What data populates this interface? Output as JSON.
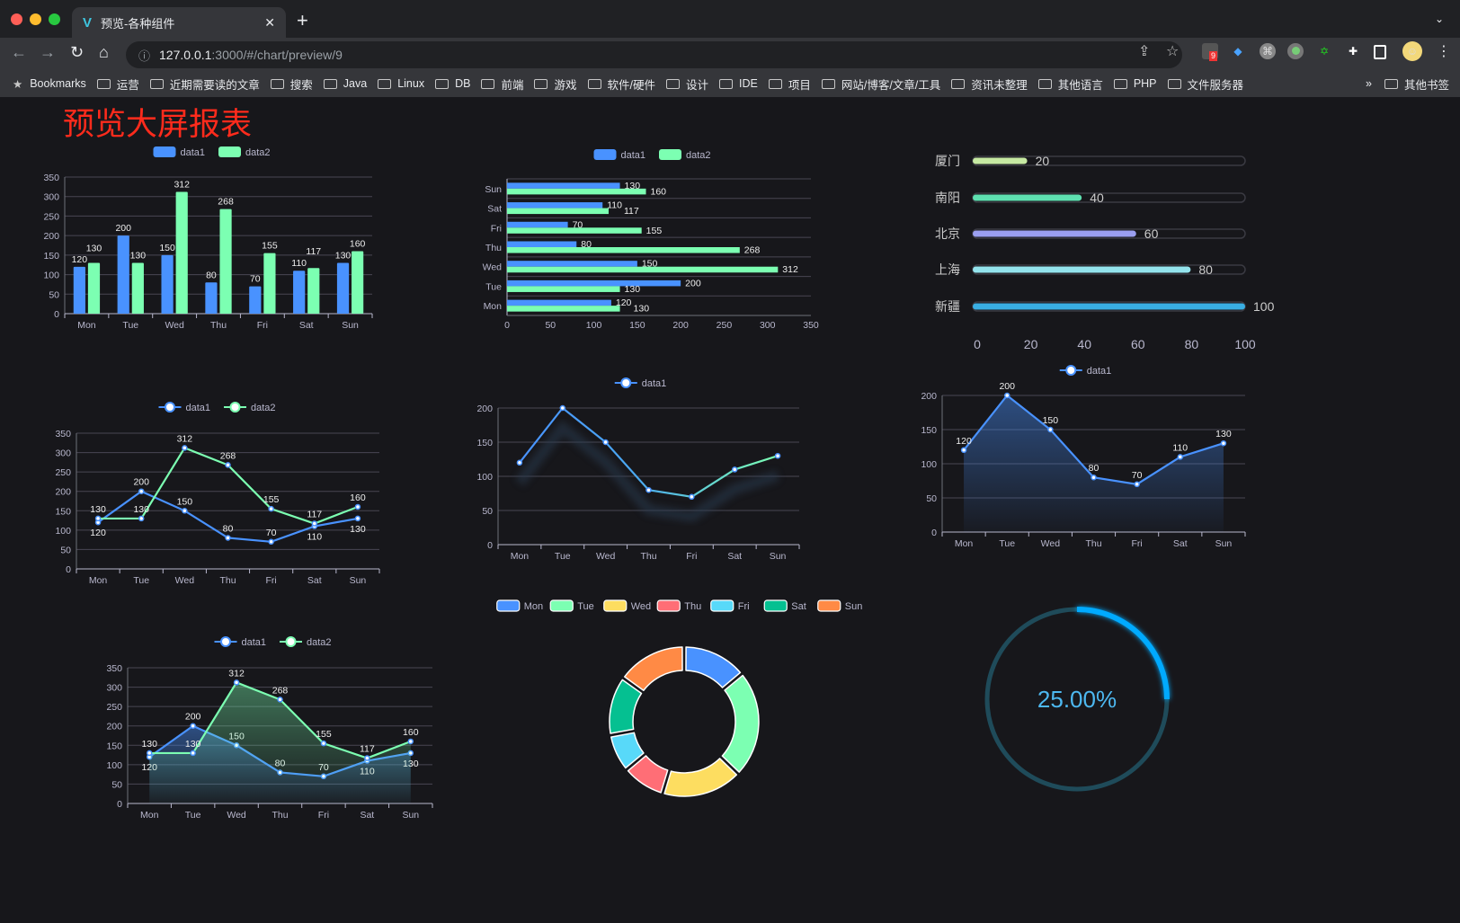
{
  "browser": {
    "tab_title": "预览-各种组件",
    "url_host": "127.0.0.1",
    "url_path": ":3000/#/chart/preview/9",
    "extension_badge": "9",
    "bookmarks": [
      "Bookmarks",
      "运营",
      "近期需要读的文章",
      "搜索",
      "Java",
      "Linux",
      "DB",
      "前端",
      "游戏",
      "软件/硬件",
      "设计",
      "IDE",
      "项目",
      "网站/博客/文章/工具",
      "资讯未整理",
      "其他语言",
      "PHP",
      "文件服务器"
    ],
    "bookmarks_more": "»",
    "other_bookmarks": "其他书签"
  },
  "page": {
    "title": "预览大屏报表",
    "title_color": "#ff2b1c",
    "background": "#17171b"
  },
  "colors": {
    "data1": "#4992ff",
    "data2": "#7cffb2",
    "axis_text": "#b9b8ce",
    "grid": "#484753",
    "gauge": "#00aaff",
    "gauge_track": "#1f4b5a"
  },
  "chart_data": [
    {
      "id": "bar",
      "type": "bar",
      "legend": [
        "data1",
        "data2"
      ],
      "categories": [
        "Mon",
        "Tue",
        "Wed",
        "Thu",
        "Fri",
        "Sat",
        "Sun"
      ],
      "series": [
        {
          "name": "data1",
          "values": [
            120,
            200,
            150,
            80,
            70,
            110,
            130
          ]
        },
        {
          "name": "data2",
          "values": [
            130,
            130,
            312,
            268,
            155,
            117,
            160
          ]
        }
      ],
      "ylim": [
        0,
        350
      ],
      "yticks": [
        0,
        50,
        100,
        150,
        200,
        250,
        300,
        350
      ],
      "grid": true,
      "data_labels": true,
      "legend_position": "top"
    },
    {
      "id": "hbar",
      "type": "bar",
      "orientation": "horizontal",
      "legend": [
        "data1",
        "data2"
      ],
      "categories": [
        "Mon",
        "Tue",
        "Wed",
        "Thu",
        "Fri",
        "Sat",
        "Sun"
      ],
      "series": [
        {
          "name": "data1",
          "values": [
            120,
            200,
            150,
            80,
            70,
            110,
            130
          ]
        },
        {
          "name": "data2",
          "values": [
            130,
            130,
            312,
            268,
            155,
            117,
            160
          ]
        }
      ],
      "xlim": [
        0,
        350
      ],
      "xticks": [
        0,
        50,
        100,
        150,
        200,
        250,
        300,
        350
      ],
      "grid": true,
      "data_labels": true,
      "legend_position": "top"
    },
    {
      "id": "progress",
      "type": "bar",
      "orientation": "horizontal",
      "style": "progress",
      "categories": [
        "厦门",
        "南阳",
        "北京",
        "上海",
        "新疆"
      ],
      "values": [
        20,
        40,
        60,
        80,
        100
      ],
      "colors": [
        "#c6e9a2",
        "#5ee0b0",
        "#9a9ef0",
        "#93e3ec",
        "#39aee3"
      ],
      "xlim": [
        0,
        100
      ],
      "xticks": [
        0,
        20,
        40,
        60,
        80,
        100
      ]
    },
    {
      "id": "line2",
      "type": "line",
      "legend": [
        "data1",
        "data2"
      ],
      "categories": [
        "Mon",
        "Tue",
        "Wed",
        "Thu",
        "Fri",
        "Sat",
        "Sun"
      ],
      "series": [
        {
          "name": "data1",
          "values": [
            120,
            200,
            150,
            80,
            70,
            110,
            130
          ]
        },
        {
          "name": "data2",
          "values": [
            130,
            130,
            312,
            268,
            155,
            117,
            160
          ]
        }
      ],
      "ylim": [
        0,
        350
      ],
      "yticks": [
        0,
        50,
        100,
        150,
        200,
        250,
        300,
        350
      ],
      "grid": true,
      "data_labels": true,
      "legend_position": "top"
    },
    {
      "id": "line1",
      "type": "line",
      "legend": [
        "data1"
      ],
      "categories": [
        "Mon",
        "Tue",
        "Wed",
        "Thu",
        "Fri",
        "Sat",
        "Sun"
      ],
      "series": [
        {
          "name": "data1",
          "values": [
            120,
            200,
            150,
            80,
            70,
            110,
            130
          ]
        }
      ],
      "gradient": [
        "#4992ff",
        "#7cffb2"
      ],
      "shadow": true,
      "ylim": [
        0,
        200
      ],
      "yticks": [
        0,
        50,
        100,
        150,
        200
      ],
      "grid": true,
      "data_labels": false,
      "legend_position": "top"
    },
    {
      "id": "area1",
      "type": "area",
      "legend": [
        "data1"
      ],
      "categories": [
        "Mon",
        "Tue",
        "Wed",
        "Thu",
        "Fri",
        "Sat",
        "Sun"
      ],
      "series": [
        {
          "name": "data1",
          "values": [
            120,
            200,
            150,
            80,
            70,
            110,
            130
          ]
        }
      ],
      "ylim": [
        0,
        200
      ],
      "yticks": [
        0,
        50,
        100,
        150,
        200
      ],
      "grid": true,
      "data_labels": true,
      "legend_position": "top"
    },
    {
      "id": "area2",
      "type": "area",
      "legend": [
        "data1",
        "data2"
      ],
      "categories": [
        "Mon",
        "Tue",
        "Wed",
        "Thu",
        "Fri",
        "Sat",
        "Sun"
      ],
      "series": [
        {
          "name": "data1",
          "values": [
            120,
            200,
            150,
            80,
            70,
            110,
            130
          ]
        },
        {
          "name": "data2",
          "values": [
            130,
            130,
            312,
            268,
            155,
            117,
            160
          ]
        }
      ],
      "ylim": [
        0,
        350
      ],
      "yticks": [
        0,
        50,
        100,
        150,
        200,
        250,
        300,
        350
      ],
      "grid": true,
      "data_labels": true,
      "legend_position": "top"
    },
    {
      "id": "donut",
      "type": "pie",
      "style": "donut",
      "categories": [
        "Mon",
        "Tue",
        "Wed",
        "Thu",
        "Fri",
        "Sat",
        "Sun"
      ],
      "values": [
        120,
        200,
        150,
        80,
        70,
        110,
        130
      ],
      "colors": [
        "#4992ff",
        "#7cffb2",
        "#fddd60",
        "#ff6e76",
        "#58d9f9",
        "#05c091",
        "#ff8a45"
      ],
      "legend_position": "top"
    },
    {
      "id": "gauge",
      "type": "gauge",
      "value": 25,
      "label": "25.00%"
    }
  ]
}
